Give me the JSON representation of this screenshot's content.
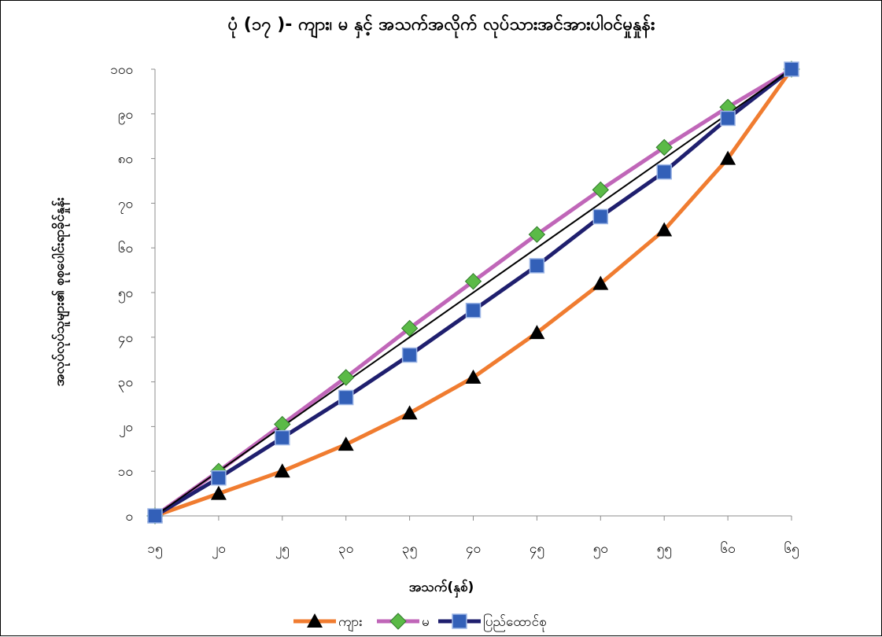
{
  "chart_data": {
    "type": "line",
    "title": "ပုံ (၁၇ )- ကျား၊ မ နှင့် အသက်အလိုက် လုပ်သားအင်အားပါဝင်မှုနှုန်း",
    "xlabel": "အသက်(နှစ်)",
    "ylabel": "အလုပ်လုပ်သူများ၏ စုစုပေါင်းရာခိုင်နှုန်း",
    "categories": [
      "၁၅",
      "၂၀",
      "၂၅",
      "၃၀",
      "၃၅",
      "၄၀",
      "၄၅",
      "၅၀",
      "၅၅",
      "၆၀",
      "၆၅"
    ],
    "y_ticks": [
      "၀",
      "၁၀",
      "၂၀",
      "၃၀",
      "၄၀",
      "၅၀",
      "၆၀",
      "၇၀",
      "၈၀",
      "၉၀",
      "၁၀၀"
    ],
    "ylim": [
      0,
      100
    ],
    "grid": false,
    "legend_position": "bottom",
    "series": [
      {
        "name": "ကျား",
        "color": "#F07C30",
        "marker": "triangle",
        "marker_color": "#000000",
        "values": [
          0,
          5,
          10,
          16,
          23,
          31,
          41,
          52,
          64,
          80,
          100
        ]
      },
      {
        "name": "မ",
        "color": "#C066B8",
        "marker": "diamond",
        "marker_color": "#5BBA47",
        "values": [
          0,
          10,
          20.5,
          31,
          42,
          52.5,
          63,
          73,
          82.5,
          91.5,
          100
        ]
      },
      {
        "name": "ပြည်ထောင်စု",
        "color": "#1F1F6E",
        "marker": "square",
        "marker_color": "#3360B8",
        "values": [
          0,
          8.5,
          17.5,
          26.5,
          36,
          46,
          56,
          67,
          77,
          89,
          100
        ]
      }
    ],
    "reference_line": {
      "color": "#000000",
      "values": [
        0,
        100
      ]
    }
  }
}
